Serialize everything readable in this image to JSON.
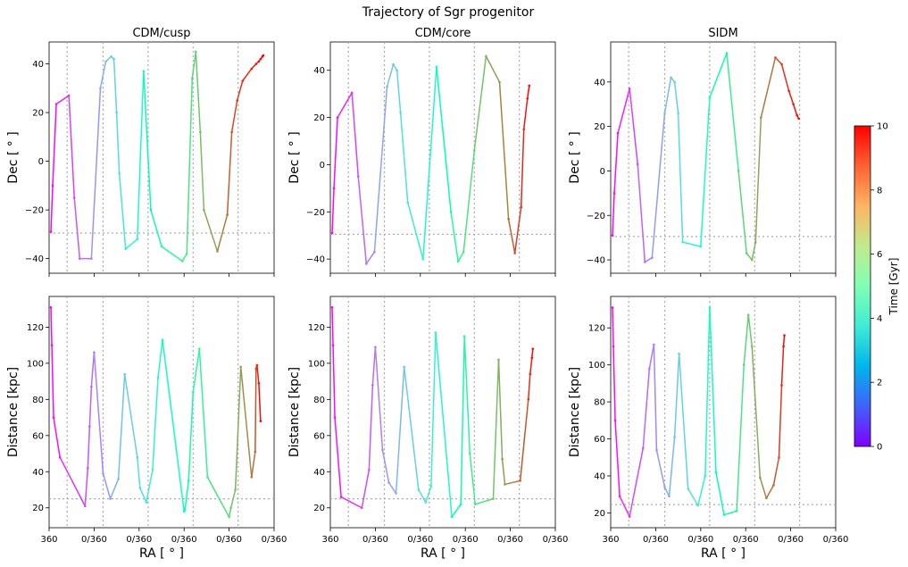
{
  "figure": {
    "title": "Trajectory of Sgr progenitor",
    "colorbar": {
      "label": "Time [Gyr]",
      "range": [
        0,
        10
      ],
      "ticks": [
        "0",
        "2",
        "4",
        "6",
        "8",
        "10"
      ],
      "colormap": "rainbow"
    },
    "ra_tick_labels": [
      "360",
      "0/360",
      "0/360",
      "0/360",
      "0/360",
      "0/360"
    ]
  },
  "chart_data": [
    {
      "type": "line",
      "panel": "CDM/cusp Dec",
      "title": "CDM/cusp",
      "xlabel": "",
      "ylabel": "Dec [$^\\circ$]",
      "ylim": [
        -46,
        49
      ],
      "yticks": [
        -40,
        -20,
        0,
        20,
        40
      ],
      "ref_line": -29.5,
      "x": [
        0.04,
        0.08,
        0.16,
        0.44,
        0.56,
        0.68,
        0.94,
        1.14,
        1.26,
        1.38,
        1.44,
        1.5,
        1.56,
        1.7,
        1.96,
        2.1,
        2.26,
        2.5,
        2.96,
        3.06,
        3.18,
        3.26,
        3.36,
        3.44,
        3.74,
        3.96,
        4.06,
        4.18,
        4.3,
        4.5,
        4.6,
        4.66,
        4.7,
        4.74,
        4.76
      ],
      "y": [
        -29,
        -10,
        23.5,
        27,
        -15,
        -40,
        -40,
        30,
        41,
        43,
        42,
        20,
        -5,
        -36,
        -32,
        37,
        -20,
        -35,
        -41,
        -38,
        34,
        45,
        12,
        -20,
        -37,
        -22,
        12,
        25,
        33,
        38,
        40,
        41,
        42,
        43,
        43.5
      ],
      "t": [
        0,
        0.03,
        0.2,
        0.65,
        0.95,
        1.3,
        1.65,
        2.35,
        2.6,
        2.85,
        3.0,
        3.2,
        3.4,
        3.75,
        4.2,
        4.75,
        5.2,
        5.6,
        6.1,
        6.35,
        6.75,
        7.0,
        7.25,
        7.45,
        8.05,
        8.6,
        8.95,
        9.2,
        9.4,
        9.6,
        9.7,
        9.8,
        9.88,
        9.95,
        10.0
      ]
    },
    {
      "type": "line",
      "panel": "CDM/core Dec",
      "title": "CDM/core",
      "xlabel": "",
      "ylabel": "Dec [$^\\circ$]",
      "ylim": [
        -46,
        52
      ],
      "yticks": [
        -40,
        -20,
        0,
        20,
        40
      ],
      "ref_line": -29.5,
      "x": [
        0.04,
        0.08,
        0.16,
        0.48,
        0.62,
        0.8,
        0.98,
        1.26,
        1.4,
        1.48,
        1.56,
        1.72,
        2.06,
        2.36,
        2.68,
        2.84,
        2.96,
        3.2,
        3.46,
        3.76,
        3.96,
        4.1,
        4.24,
        4.3,
        4.38,
        4.42
      ],
      "y": [
        -29,
        -10,
        20,
        30.5,
        -5,
        -42,
        -37,
        33,
        42.5,
        40,
        22,
        -16,
        -40,
        41.5,
        -20,
        -41,
        -37,
        6,
        46,
        35,
        -23,
        -37.5,
        -18,
        15,
        28,
        33.5
      ],
      "t": [
        0,
        0.03,
        0.2,
        0.7,
        1.0,
        1.55,
        1.85,
        2.6,
        2.9,
        3.05,
        3.25,
        3.65,
        4.15,
        4.75,
        5.45,
        5.95,
        6.25,
        6.9,
        7.55,
        8.1,
        8.55,
        8.95,
        9.4,
        9.6,
        9.85,
        10.0
      ]
    },
    {
      "type": "line",
      "panel": "SIDM Dec",
      "title": "SIDM",
      "xlabel": "",
      "ylabel": "Dec [$^\\circ$]",
      "ylim": [
        -46,
        58
      ],
      "yticks": [
        -40,
        -20,
        0,
        20,
        40
      ],
      "ref_line": -29.5,
      "x": [
        0.04,
        0.08,
        0.16,
        0.42,
        0.6,
        0.76,
        0.92,
        1.2,
        1.34,
        1.42,
        1.5,
        1.6,
        2.0,
        2.2,
        2.58,
        2.84,
        3.02,
        3.14,
        3.22,
        3.34,
        3.66,
        3.8,
        3.96,
        4.06,
        4.14,
        4.18
      ],
      "y": [
        -29,
        -10,
        17,
        37,
        3,
        -41,
        -39,
        26,
        42,
        40,
        26,
        -32,
        -34,
        33,
        53,
        0,
        -37,
        -40,
        -32,
        24,
        51,
        48,
        36,
        30,
        25,
        23.5
      ],
      "t": [
        0,
        0.03,
        0.2,
        0.65,
        1.0,
        1.5,
        1.8,
        2.5,
        2.8,
        2.95,
        3.15,
        3.6,
        4.15,
        4.85,
        5.85,
        6.6,
        7.05,
        7.3,
        7.55,
        8.05,
        8.85,
        9.2,
        9.55,
        9.78,
        9.93,
        10.0
      ]
    },
    {
      "type": "line",
      "panel": "CDM/cusp Distance",
      "title": "",
      "xlabel": "RA [$^\\circ$]",
      "ylabel": "Distance [kpc]",
      "ylim": [
        9,
        137
      ],
      "yticks": [
        20,
        40,
        60,
        80,
        100,
        120
      ],
      "ref_line": 25,
      "x": [
        0.04,
        0.06,
        0.1,
        0.24,
        0.8,
        0.86,
        0.9,
        0.94,
        1.0,
        1.2,
        1.36,
        1.54,
        1.68,
        1.96,
        2.02,
        2.16,
        2.3,
        2.42,
        2.52,
        3.0,
        3.02,
        3.1,
        3.2,
        3.34,
        3.52,
        4.0,
        4.04,
        4.14,
        4.26,
        4.5,
        4.58,
        4.6,
        4.62,
        4.66,
        4.7
      ],
      "y": [
        131,
        110,
        70,
        48,
        21,
        42,
        65,
        87,
        106,
        39,
        25,
        36,
        94,
        48,
        31,
        23,
        41,
        92,
        113,
        18,
        19,
        35,
        84,
        108,
        37,
        15,
        20,
        30,
        98,
        37,
        51,
        97,
        99,
        89,
        68
      ],
      "t": [
        0,
        0.03,
        0.1,
        0.3,
        0.95,
        1.05,
        1.15,
        1.3,
        1.55,
        1.9,
        2.2,
        2.55,
        2.8,
        3.25,
        3.4,
        3.65,
        3.85,
        4.1,
        4.3,
        5.0,
        5.05,
        5.3,
        5.55,
        5.85,
        6.2,
        6.95,
        7.05,
        7.4,
        7.85,
        8.4,
        8.7,
        9.2,
        9.5,
        9.8,
        10.0
      ]
    },
    {
      "type": "line",
      "panel": "CDM/core Distance",
      "title": "",
      "xlabel": "RA [$^\\circ$]",
      "ylabel": "Distance [kpc]",
      "ylim": [
        9,
        137
      ],
      "yticks": [
        20,
        40,
        60,
        80,
        100,
        120
      ],
      "ref_line": 25,
      "x": [
        0.04,
        0.06,
        0.1,
        0.24,
        0.7,
        0.86,
        0.94,
        1.0,
        1.16,
        1.3,
        1.46,
        1.64,
        1.96,
        2.12,
        2.24,
        2.34,
        2.7,
        2.9,
        2.98,
        3.1,
        3.22,
        3.62,
        3.74,
        3.82,
        3.88,
        4.22,
        4.4,
        4.44,
        4.48,
        4.5
      ],
      "y": [
        131,
        110,
        70,
        26,
        20,
        41,
        88,
        109,
        52,
        34,
        28,
        98,
        30,
        23,
        32,
        117,
        15,
        22,
        115,
        50,
        22,
        25,
        102,
        47,
        33,
        35,
        80,
        94,
        103,
        108
      ],
      "t": [
        0,
        0.03,
        0.1,
        0.3,
        0.85,
        1.05,
        1.3,
        1.5,
        1.85,
        2.1,
        2.4,
        2.75,
        3.25,
        3.55,
        3.75,
        4.0,
        4.8,
        5.3,
        5.6,
        6.0,
        6.35,
        7.05,
        7.45,
        7.85,
        8.05,
        8.6,
        9.3,
        9.55,
        9.8,
        10.0
      ]
    },
    {
      "type": "line",
      "panel": "SIDM Distance",
      "title": "",
      "xlabel": "RA [$^\\circ$]",
      "ylabel": "Distance [kpc]",
      "ylim": [
        12,
        137
      ],
      "yticks": [
        20,
        40,
        60,
        80,
        100,
        120
      ],
      "ref_line": 24.5,
      "x": [
        0.04,
        0.06,
        0.1,
        0.2,
        0.42,
        0.72,
        0.86,
        0.96,
        1.02,
        1.2,
        1.3,
        1.42,
        1.52,
        1.72,
        1.94,
        2.1,
        2.2,
        2.34,
        2.52,
        2.8,
        2.96,
        3.06,
        3.14,
        3.32,
        3.46,
        3.62,
        3.74,
        3.8,
        3.84,
        3.86
      ],
      "y": [
        131,
        110,
        70,
        29,
        18,
        55,
        98,
        111,
        54,
        34,
        29,
        61,
        106,
        33,
        24,
        40,
        131,
        42,
        19,
        21,
        100,
        127,
        110,
        39,
        28,
        35,
        50,
        89,
        110,
        116
      ],
      "t": [
        0,
        0.03,
        0.1,
        0.3,
        0.75,
        1.2,
        1.45,
        1.6,
        1.9,
        2.15,
        2.35,
        2.7,
        3.0,
        3.4,
        3.8,
        4.2,
        4.5,
        4.85,
        5.25,
        6.05,
        6.75,
        7.1,
        7.35,
        7.95,
        8.3,
        8.7,
        9.05,
        9.45,
        9.75,
        10.0
      ]
    }
  ]
}
